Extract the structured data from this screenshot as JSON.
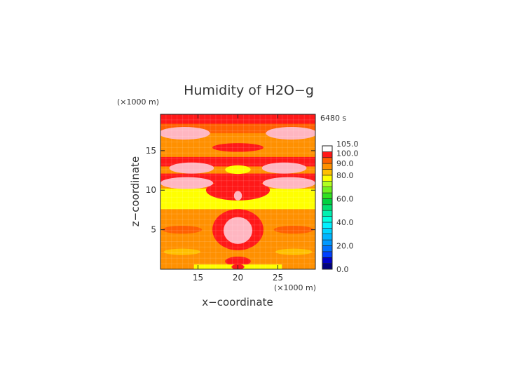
{
  "chart_data": {
    "type": "heatmap",
    "title": "Humidity of H2O−g",
    "time_label": "6480 s",
    "xlabel": "x−coordinate",
    "ylabel": "z−coordinate",
    "x_unit": "(×1000 m)",
    "y_unit": "(×1000 m)",
    "xlim": [
      10.3,
      29.7
    ],
    "ylim": [
      0,
      19.6
    ],
    "x_ticks": [
      "15",
      "20",
      "25"
    ],
    "x_tick_values": [
      15,
      20,
      25
    ],
    "y_ticks": [
      "5",
      "10",
      "15"
    ],
    "y_tick_values": [
      5,
      10,
      15
    ],
    "grid": false,
    "colorbar": {
      "tick_labels": [
        "105.0",
        "100.0",
        "90.0",
        "80.0",
        "60.0",
        "40.0",
        "20.0",
        "0.0"
      ],
      "tick_values": [
        105,
        100,
        90,
        80,
        60,
        40,
        20,
        0
      ],
      "levels": [
        {
          "from": 0,
          "to": 5,
          "color": "#00007f"
        },
        {
          "from": 5,
          "to": 10,
          "color": "#0000c8"
        },
        {
          "from": 10,
          "to": 15,
          "color": "#0040ff"
        },
        {
          "from": 15,
          "to": 20,
          "color": "#0070ff"
        },
        {
          "from": 20,
          "to": 25,
          "color": "#0098ff"
        },
        {
          "from": 25,
          "to": 30,
          "color": "#00b4ff"
        },
        {
          "from": 30,
          "to": 35,
          "color": "#00d4ff"
        },
        {
          "from": 35,
          "to": 40,
          "color": "#00f0ff"
        },
        {
          "from": 40,
          "to": 45,
          "color": "#00ffe0"
        },
        {
          "from": 45,
          "to": 50,
          "color": "#00f0b0"
        },
        {
          "from": 50,
          "to": 55,
          "color": "#00e070"
        },
        {
          "from": 55,
          "to": 60,
          "color": "#00d040"
        },
        {
          "from": 60,
          "to": 65,
          "color": "#30e020"
        },
        {
          "from": 65,
          "to": 70,
          "color": "#70f020"
        },
        {
          "from": 70,
          "to": 75,
          "color": "#b0ff20"
        },
        {
          "from": 75,
          "to": 80,
          "color": "#ffff00"
        },
        {
          "from": 80,
          "to": 85,
          "color": "#ffc000"
        },
        {
          "from": 85,
          "to": 90,
          "color": "#ff9000"
        },
        {
          "from": 90,
          "to": 95,
          "color": "#ff6000"
        },
        {
          "from": 95,
          "to": 100,
          "color": "#ff1818"
        },
        {
          "from": 100,
          "to": 105,
          "color": "#ffffff"
        }
      ]
    },
    "regions": [
      {
        "level": 88,
        "shape": "rect",
        "x": [
          10.3,
          29.7
        ],
        "z": [
          0,
          19.6
        ]
      },
      {
        "level": 93,
        "shape": "rect",
        "x": [
          10.3,
          29.7
        ],
        "z": [
          17.2,
          19.6
        ]
      },
      {
        "level": 97,
        "shape": "rect",
        "x": [
          10.3,
          29.7
        ],
        "z": [
          18.4,
          19.6
        ]
      },
      {
        "level": 97,
        "shape": "rect",
        "x": [
          10.3,
          29.7
        ],
        "z": [
          13.0,
          14.2
        ]
      },
      {
        "level": 97,
        "shape": "rect",
        "x": [
          10.3,
          29.7
        ],
        "z": [
          10.9,
          12.1
        ]
      },
      {
        "level": 97,
        "shape": "ellipse",
        "cx": 20,
        "cz": 15.4,
        "rx": 3.2,
        "rz": 0.55
      },
      {
        "level": 77,
        "shape": "ellipse",
        "cx": 20,
        "cz": 12.6,
        "rx": 1.6,
        "rz": 0.55
      },
      {
        "level": 101,
        "shape": "ellipse",
        "cx": 13.3,
        "cz": 17.2,
        "rx": 3.2,
        "rz": 0.8
      },
      {
        "level": 101,
        "shape": "ellipse",
        "cx": 26.7,
        "cz": 17.2,
        "rx": 3.2,
        "rz": 0.8
      },
      {
        "level": 101,
        "shape": "ellipse",
        "cx": 14.2,
        "cz": 12.8,
        "rx": 2.8,
        "rz": 0.7
      },
      {
        "level": 101,
        "shape": "ellipse",
        "cx": 25.8,
        "cz": 12.8,
        "rx": 2.8,
        "rz": 0.7
      },
      {
        "level": 77,
        "shape": "rect",
        "x": [
          10.3,
          29.7
        ],
        "z": [
          7.6,
          10.2
        ]
      },
      {
        "level": 97,
        "shape": "ellipse",
        "cx": 20,
        "cz": 10.0,
        "rx": 4.0,
        "rz": 1.3
      },
      {
        "level": 101,
        "shape": "ellipse",
        "cx": 13.6,
        "cz": 10.9,
        "rx": 3.3,
        "rz": 0.75
      },
      {
        "level": 101,
        "shape": "ellipse",
        "cx": 26.4,
        "cz": 10.9,
        "rx": 3.3,
        "rz": 0.75
      },
      {
        "level": 101,
        "shape": "ellipse",
        "cx": 20,
        "cz": 9.3,
        "rx": 0.5,
        "rz": 0.6
      },
      {
        "level": 97,
        "shape": "ellipse",
        "cx": 20,
        "cz": 5.0,
        "rx": 3.2,
        "rz": 2.6
      },
      {
        "level": 101,
        "shape": "ellipse",
        "cx": 20,
        "cz": 4.9,
        "rx": 1.8,
        "rz": 1.7
      },
      {
        "level": 93,
        "shape": "ellipse",
        "cx": 13.0,
        "cz": 5.0,
        "rx": 2.5,
        "rz": 0.5
      },
      {
        "level": 93,
        "shape": "ellipse",
        "cx": 27.0,
        "cz": 5.0,
        "rx": 2.5,
        "rz": 0.5
      },
      {
        "level": 82,
        "shape": "ellipse",
        "cx": 13.0,
        "cz": 2.2,
        "rx": 2.3,
        "rz": 0.4
      },
      {
        "level": 82,
        "shape": "ellipse",
        "cx": 27.0,
        "cz": 2.2,
        "rx": 2.3,
        "rz": 0.4
      },
      {
        "level": 97,
        "shape": "ellipse",
        "cx": 20,
        "cz": 1.0,
        "rx": 1.6,
        "rz": 0.6
      },
      {
        "level": 77,
        "shape": "rect",
        "x": [
          14.5,
          25.5
        ],
        "z": [
          0.0,
          0.6
        ]
      },
      {
        "level": 97,
        "shape": "ellipse",
        "cx": 20,
        "cz": 0.3,
        "rx": 0.8,
        "rz": 0.35
      }
    ]
  }
}
